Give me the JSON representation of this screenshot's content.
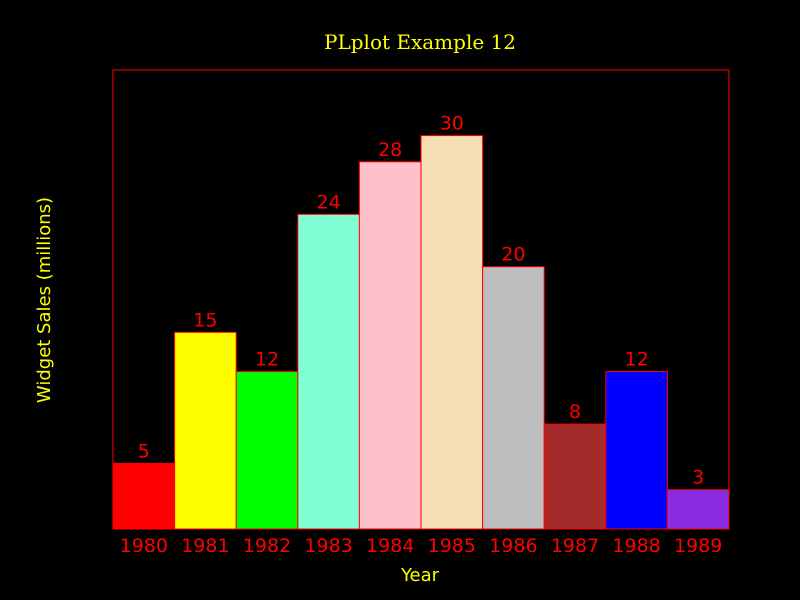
{
  "chart_data": {
    "type": "bar",
    "title": "PLplot Example 12",
    "xlabel": "Year",
    "ylabel": "Widget Sales (millions)",
    "categories": [
      "1980",
      "1981",
      "1982",
      "1983",
      "1984",
      "1985",
      "1986",
      "1987",
      "1988",
      "1989"
    ],
    "values": [
      5,
      15,
      12,
      24,
      28,
      30,
      20,
      8,
      12,
      3
    ],
    "data_labels": [
      "5",
      "15",
      "12",
      "24",
      "28",
      "30",
      "20",
      "8",
      "12",
      "3"
    ],
    "ylim": [
      0,
      35
    ],
    "grid": false,
    "bar_colors": [
      "#ff0000",
      "#ffff00",
      "#00ff00",
      "#80ffd4",
      "#ffc0cb",
      "#f5deb3",
      "#bebebe",
      "#a52a2a",
      "#0000ff",
      "#8a2be2"
    ]
  },
  "colors": {
    "background": "#000000",
    "frame": "#ff0000",
    "title": "#ffff00",
    "axis_labels": "#ffff00",
    "ticks_and_values": "#ff0000",
    "bar_outline": "#ff0000"
  }
}
